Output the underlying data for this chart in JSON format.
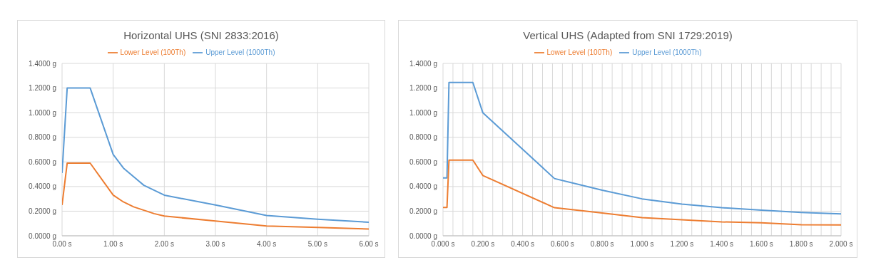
{
  "chart_data": [
    {
      "type": "line",
      "title": "Horizontal UHS (SNI 2833:2016)",
      "legend": "top",
      "grid": true,
      "marker": "none",
      "line_style": "solid",
      "xlim": [
        0,
        6
      ],
      "xticks": [
        {
          "value": 0,
          "label": "0.00 s"
        },
        {
          "value": 1,
          "label": "1.00 s"
        },
        {
          "value": 2,
          "label": "2.00 s"
        },
        {
          "value": 3,
          "label": "3.00 s"
        },
        {
          "value": 4,
          "label": "4.00 s"
        },
        {
          "value": 5,
          "label": "5.00 s"
        },
        {
          "value": 6,
          "label": "6.00 s"
        }
      ],
      "ylim": [
        0,
        1.4
      ],
      "yticks": [
        {
          "value": 0,
          "label": "0.0000 g"
        },
        {
          "value": 0.2,
          "label": "0.2000 g"
        },
        {
          "value": 0.4,
          "label": "0.4000 g"
        },
        {
          "value": 0.6,
          "label": "0.6000 g"
        },
        {
          "value": 0.8,
          "label": "0.8000 g"
        },
        {
          "value": 1.0,
          "label": "1.0000 g"
        },
        {
          "value": 1.2,
          "label": "1.2000 g"
        },
        {
          "value": 1.4,
          "label": "1.4000 g"
        }
      ],
      "series": [
        {
          "name": "Upper Level (1000Th)",
          "color": "#5b9bd5",
          "x": [
            0,
            0.1,
            0.55,
            1.0,
            1.2,
            1.6,
            2.0,
            3.0,
            4.0,
            5.0,
            6.0
          ],
          "values": [
            0.51,
            1.2,
            1.2,
            0.66,
            0.55,
            0.41,
            0.33,
            0.25,
            0.165,
            0.135,
            0.11
          ]
        },
        {
          "name": "Lower Level (100Th)",
          "color": "#ed7d31",
          "x": [
            0,
            0.1,
            0.55,
            1.0,
            1.2,
            1.4,
            1.8,
            2.0,
            3.0,
            4.0,
            5.0,
            6.0
          ],
          "values": [
            0.25,
            0.59,
            0.59,
            0.33,
            0.275,
            0.235,
            0.18,
            0.16,
            0.12,
            0.08,
            0.068,
            0.055
          ]
        }
      ]
    },
    {
      "type": "line",
      "title": "Vertical UHS (Adapted from SNI 1729:2019)",
      "legend": "top",
      "grid": true,
      "marker": "none",
      "line_style": "solid",
      "xlim": [
        0,
        2
      ],
      "xticks": [
        {
          "value": 0,
          "label": "0.000 s"
        },
        {
          "value": 0.05,
          "label": null
        },
        {
          "value": 0.1,
          "label": null
        },
        {
          "value": 0.15,
          "label": null
        },
        {
          "value": 0.2,
          "label": "0.200 s"
        },
        {
          "value": 0.25,
          "label": null
        },
        {
          "value": 0.3,
          "label": null
        },
        {
          "value": 0.35,
          "label": null
        },
        {
          "value": 0.4,
          "label": "0.400 s"
        },
        {
          "value": 0.45,
          "label": null
        },
        {
          "value": 0.5,
          "label": null
        },
        {
          "value": 0.55,
          "label": null
        },
        {
          "value": 0.6,
          "label": "0.600 s"
        },
        {
          "value": 0.65,
          "label": null
        },
        {
          "value": 0.7,
          "label": null
        },
        {
          "value": 0.75,
          "label": null
        },
        {
          "value": 0.8,
          "label": "0.800 s"
        },
        {
          "value": 0.85,
          "label": null
        },
        {
          "value": 0.9,
          "label": null
        },
        {
          "value": 0.95,
          "label": null
        },
        {
          "value": 1.0,
          "label": "1.000 s"
        },
        {
          "value": 1.05,
          "label": null
        },
        {
          "value": 1.1,
          "label": null
        },
        {
          "value": 1.15,
          "label": null
        },
        {
          "value": 1.2,
          "label": "1.200 s"
        },
        {
          "value": 1.25,
          "label": null
        },
        {
          "value": 1.3,
          "label": null
        },
        {
          "value": 1.35,
          "label": null
        },
        {
          "value": 1.4,
          "label": "1.400 s"
        },
        {
          "value": 1.45,
          "label": null
        },
        {
          "value": 1.5,
          "label": null
        },
        {
          "value": 1.55,
          "label": null
        },
        {
          "value": 1.6,
          "label": "1.600 s"
        },
        {
          "value": 1.65,
          "label": null
        },
        {
          "value": 1.7,
          "label": null
        },
        {
          "value": 1.75,
          "label": null
        },
        {
          "value": 1.8,
          "label": "1.800 s"
        },
        {
          "value": 1.85,
          "label": null
        },
        {
          "value": 1.9,
          "label": null
        },
        {
          "value": 1.95,
          "label": null
        },
        {
          "value": 2.0,
          "label": "2.000 s"
        }
      ],
      "ylim": [
        0,
        1.4
      ],
      "yticks": [
        {
          "value": 0,
          "label": "0.0000 g"
        },
        {
          "value": 0.2,
          "label": "0.2000 g"
        },
        {
          "value": 0.4,
          "label": "0.4000 g"
        },
        {
          "value": 0.6,
          "label": "0.6000 g"
        },
        {
          "value": 0.8,
          "label": "0.8000 g"
        },
        {
          "value": 1.0,
          "label": "1.0000 g"
        },
        {
          "value": 1.2,
          "label": "1.2000 g"
        },
        {
          "value": 1.4,
          "label": "1.4000 g"
        }
      ],
      "series": [
        {
          "name": "Upper Level (1000Th)",
          "color": "#5b9bd5",
          "x": [
            0,
            0.02,
            0.03,
            0.15,
            0.2,
            0.56,
            0.8,
            1.0,
            1.2,
            1.4,
            1.6,
            1.8,
            2.0
          ],
          "values": [
            0.47,
            0.47,
            1.245,
            1.245,
            1.0,
            0.465,
            0.37,
            0.3,
            0.258,
            0.228,
            0.208,
            0.19,
            0.178
          ]
        },
        {
          "name": "Lower Level (100Th)",
          "color": "#ed7d31",
          "x": [
            0,
            0.02,
            0.03,
            0.15,
            0.2,
            0.56,
            0.8,
            1.0,
            1.2,
            1.4,
            1.6,
            1.8,
            2.0
          ],
          "values": [
            0.23,
            0.23,
            0.615,
            0.615,
            0.49,
            0.228,
            0.185,
            0.148,
            0.13,
            0.113,
            0.105,
            0.09,
            0.088
          ]
        }
      ]
    }
  ]
}
